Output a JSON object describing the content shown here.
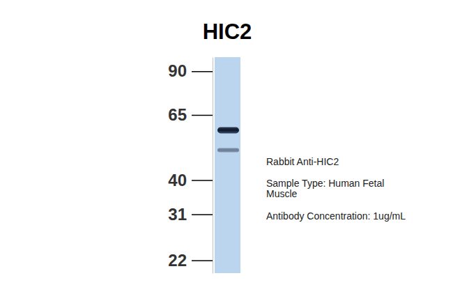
{
  "chart_data": {
    "type": "blot",
    "title": "HIC2",
    "ylim": [
      20,
      100
    ],
    "yticks": [
      22,
      31,
      40,
      65,
      90
    ],
    "log": "y",
    "bands": [
      58,
      50
    ],
    "color": "#bcd5ee",
    "annotations": [
      "Rabbit Anti-HIC2",
      "Sample Type: Human Fetal",
      "Muscle",
      "Antibody Concentration: 1ug/mL"
    ]
  }
}
